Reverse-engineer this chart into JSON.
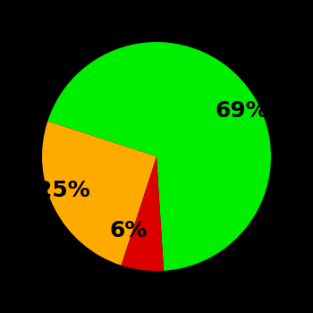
{
  "slices": [
    69,
    6,
    25
  ],
  "colors": [
    "#00ee00",
    "#dd0000",
    "#ffaa00"
  ],
  "labels": [
    "69%",
    "6%",
    "25%"
  ],
  "background_color": "#000000",
  "label_fontsize": 18,
  "label_fontweight": "bold",
  "startangle": 162,
  "figsize": [
    3.5,
    3.5
  ],
  "dpi": 100
}
